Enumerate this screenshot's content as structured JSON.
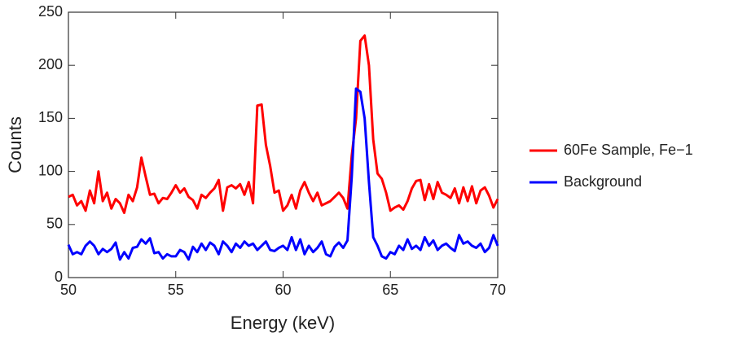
{
  "chart_data": {
    "type": "line",
    "xlabel": "Energy (keV)",
    "ylabel": "Counts",
    "x": [
      50.0,
      50.2,
      50.4,
      50.6,
      50.8,
      51.0,
      51.2,
      51.4,
      51.6,
      51.8,
      52.0,
      52.2,
      52.4,
      52.6,
      52.8,
      53.0,
      53.2,
      53.4,
      53.6,
      53.8,
      54.0,
      54.2,
      54.4,
      54.6,
      54.8,
      55.0,
      55.2,
      55.4,
      55.6,
      55.8,
      56.0,
      56.2,
      56.4,
      56.6,
      56.8,
      57.0,
      57.2,
      57.4,
      57.6,
      57.8,
      58.0,
      58.2,
      58.4,
      58.6,
      58.8,
      59.0,
      59.2,
      59.4,
      59.6,
      59.8,
      60.0,
      60.2,
      60.4,
      60.6,
      60.8,
      61.0,
      61.2,
      61.4,
      61.6,
      61.8,
      62.0,
      62.2,
      62.4,
      62.6,
      62.8,
      63.0,
      63.2,
      63.4,
      63.6,
      63.8,
      64.0,
      64.2,
      64.4,
      64.6,
      64.8,
      65.0,
      65.2,
      65.4,
      65.6,
      65.8,
      66.0,
      66.2,
      66.4,
      66.6,
      66.8,
      67.0,
      67.2,
      67.4,
      67.6,
      67.8,
      68.0,
      68.2,
      68.4,
      68.6,
      68.8,
      69.0,
      69.2,
      69.4,
      69.6,
      69.8,
      70.0
    ],
    "series": [
      {
        "name": "60Fe Sample, Fe−1",
        "color": "#ff0000",
        "values": [
          76,
          78,
          68,
          72,
          63,
          82,
          70,
          100,
          72,
          80,
          65,
          74,
          70,
          61,
          78,
          72,
          85,
          113,
          95,
          78,
          79,
          70,
          75,
          74,
          80,
          87,
          80,
          84,
          76,
          73,
          65,
          78,
          75,
          80,
          84,
          92,
          63,
          85,
          87,
          84,
          88,
          78,
          90,
          70,
          162,
          163,
          125,
          105,
          80,
          82,
          63,
          68,
          78,
          65,
          82,
          90,
          80,
          72,
          80,
          68,
          70,
          72,
          76,
          80,
          75,
          65,
          115,
          150,
          223,
          228,
          200,
          130,
          98,
          93,
          80,
          63,
          66,
          68,
          64,
          72,
          84,
          91,
          92,
          73,
          88,
          74,
          90,
          80,
          78,
          75,
          84,
          70,
          85,
          72,
          86,
          70,
          82,
          85,
          77,
          66,
          74
        ]
      },
      {
        "name": "Background",
        "color": "#0000ff",
        "values": [
          31,
          22,
          24,
          22,
          30,
          34,
          30,
          22,
          27,
          24,
          27,
          33,
          17,
          24,
          18,
          28,
          29,
          36,
          32,
          37,
          23,
          24,
          18,
          22,
          20,
          20,
          26,
          24,
          17,
          29,
          24,
          32,
          26,
          33,
          30,
          22,
          34,
          30,
          24,
          32,
          28,
          34,
          30,
          32,
          26,
          30,
          34,
          26,
          25,
          28,
          30,
          26,
          38,
          26,
          36,
          22,
          30,
          24,
          28,
          34,
          22,
          20,
          29,
          33,
          28,
          35,
          95,
          178,
          175,
          150,
          90,
          38,
          30,
          20,
          18,
          24,
          22,
          30,
          26,
          36,
          27,
          30,
          26,
          38,
          30,
          35,
          26,
          30,
          32,
          28,
          25,
          40,
          32,
          34,
          30,
          28,
          32,
          24,
          28,
          40,
          30
        ]
      }
    ],
    "xlim": [
      50,
      70
    ],
    "xticks": [
      50,
      55,
      60,
      65,
      70
    ],
    "ylim": [
      0,
      250
    ],
    "yticks": [
      0,
      50,
      100,
      150,
      200,
      250
    ],
    "legend": "right"
  }
}
